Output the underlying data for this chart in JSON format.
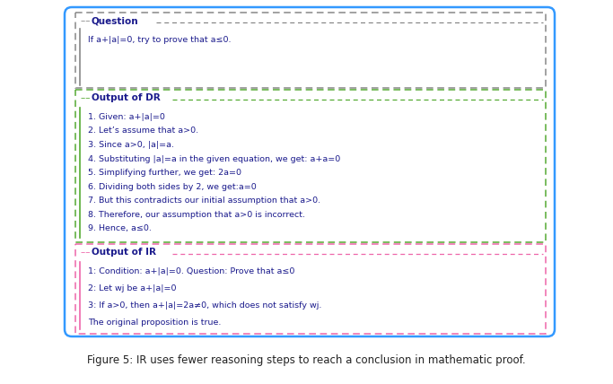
{
  "fig_width": 6.83,
  "fig_height": 4.28,
  "dpi": 100,
  "background_color": "#ffffff",
  "outer_box_color": "#3399ff",
  "question_box_color": "#888888",
  "dr_box_color": "#55aa33",
  "ir_box_color": "#ee66aa",
  "question_label": "Question",
  "question_text": "If a+|a|=0, try to prove that a≤0.",
  "dr_label": "Output of DR",
  "dr_lines": [
    "1. Given: a+|a|=0",
    "2. Let’s assume that a>0.",
    "3. Since a>0, |a|=a.",
    "4. Substituting |a|=a in the given equation, we get: a+a=0",
    "5. Simplifying further, we get: 2a=0",
    "6. Dividing both sides by 2, we get:a=0",
    "7. But this contradicts our initial assumption that a>0.",
    "8. Therefore, our assumption that a>0 is incorrect.",
    "9. Hence, a≤0."
  ],
  "ir_label": "Output of IR",
  "ir_lines": [
    "1: Condition: a+|a|=0. Question: Prove that a≤0",
    "2: Let wj be a+|a|=0",
    "3: If a>0, then a+|a|=2a≠0, which does not satisfy wj.",
    "The original proposition is true."
  ],
  "caption": "Figure 5: IR uses fewer reasoning steps to reach a conclusion in mathematic proof.",
  "text_color": "#1a1a8c",
  "label_fontsize": 7.5,
  "body_fontsize": 6.8,
  "caption_fontsize": 8.5
}
